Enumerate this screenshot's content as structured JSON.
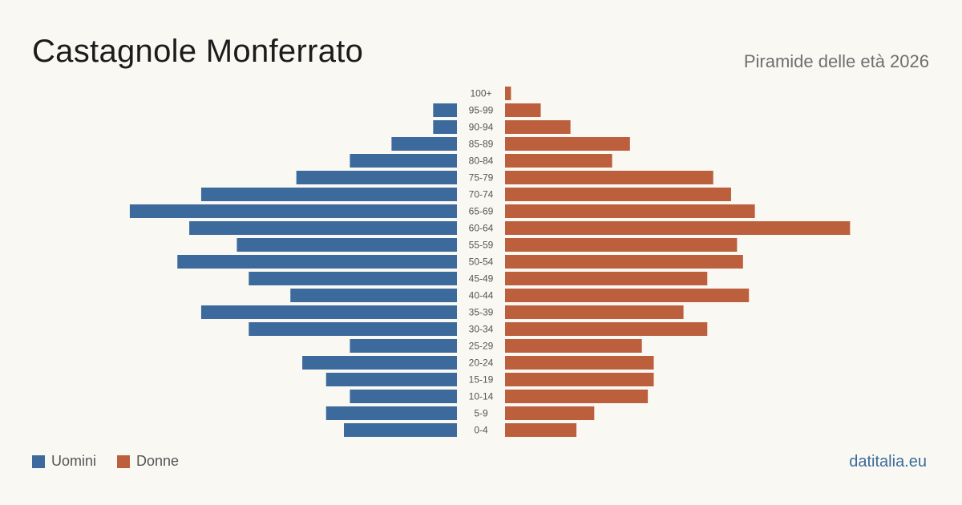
{
  "header": {
    "title": "Castagnole Monferrato",
    "subtitle": "Piramide delle età 2026"
  },
  "footer": {
    "brand": "datitalia.eu"
  },
  "colors": {
    "male": "#3d6a9c",
    "female": "#bc5f3c"
  },
  "chart_data": {
    "type": "bar",
    "orientation": "horizontal-pyramid",
    "title": "Castagnole Monferrato",
    "subtitle": "Piramide delle età 2026",
    "categories": [
      "100+",
      "95-99",
      "90-94",
      "85-89",
      "80-84",
      "75-79",
      "70-74",
      "65-69",
      "60-64",
      "55-59",
      "50-54",
      "45-49",
      "40-44",
      "35-39",
      "30-34",
      "25-29",
      "20-24",
      "15-19",
      "10-14",
      "5-9",
      "0-4"
    ],
    "series": [
      {
        "name": "Uomini",
        "values": [
          0,
          4,
          4,
          11,
          18,
          27,
          43,
          55,
          45,
          37,
          47,
          35,
          28,
          43,
          35,
          18,
          26,
          22,
          18,
          22,
          19
        ]
      },
      {
        "name": "Donne",
        "values": [
          1,
          6,
          11,
          21,
          18,
          35,
          38,
          42,
          58,
          39,
          40,
          34,
          41,
          30,
          34,
          23,
          25,
          25,
          24,
          15,
          12
        ]
      }
    ],
    "legend_position": "bottom-left",
    "grid": false,
    "xlabel": "",
    "ylabel": ""
  }
}
